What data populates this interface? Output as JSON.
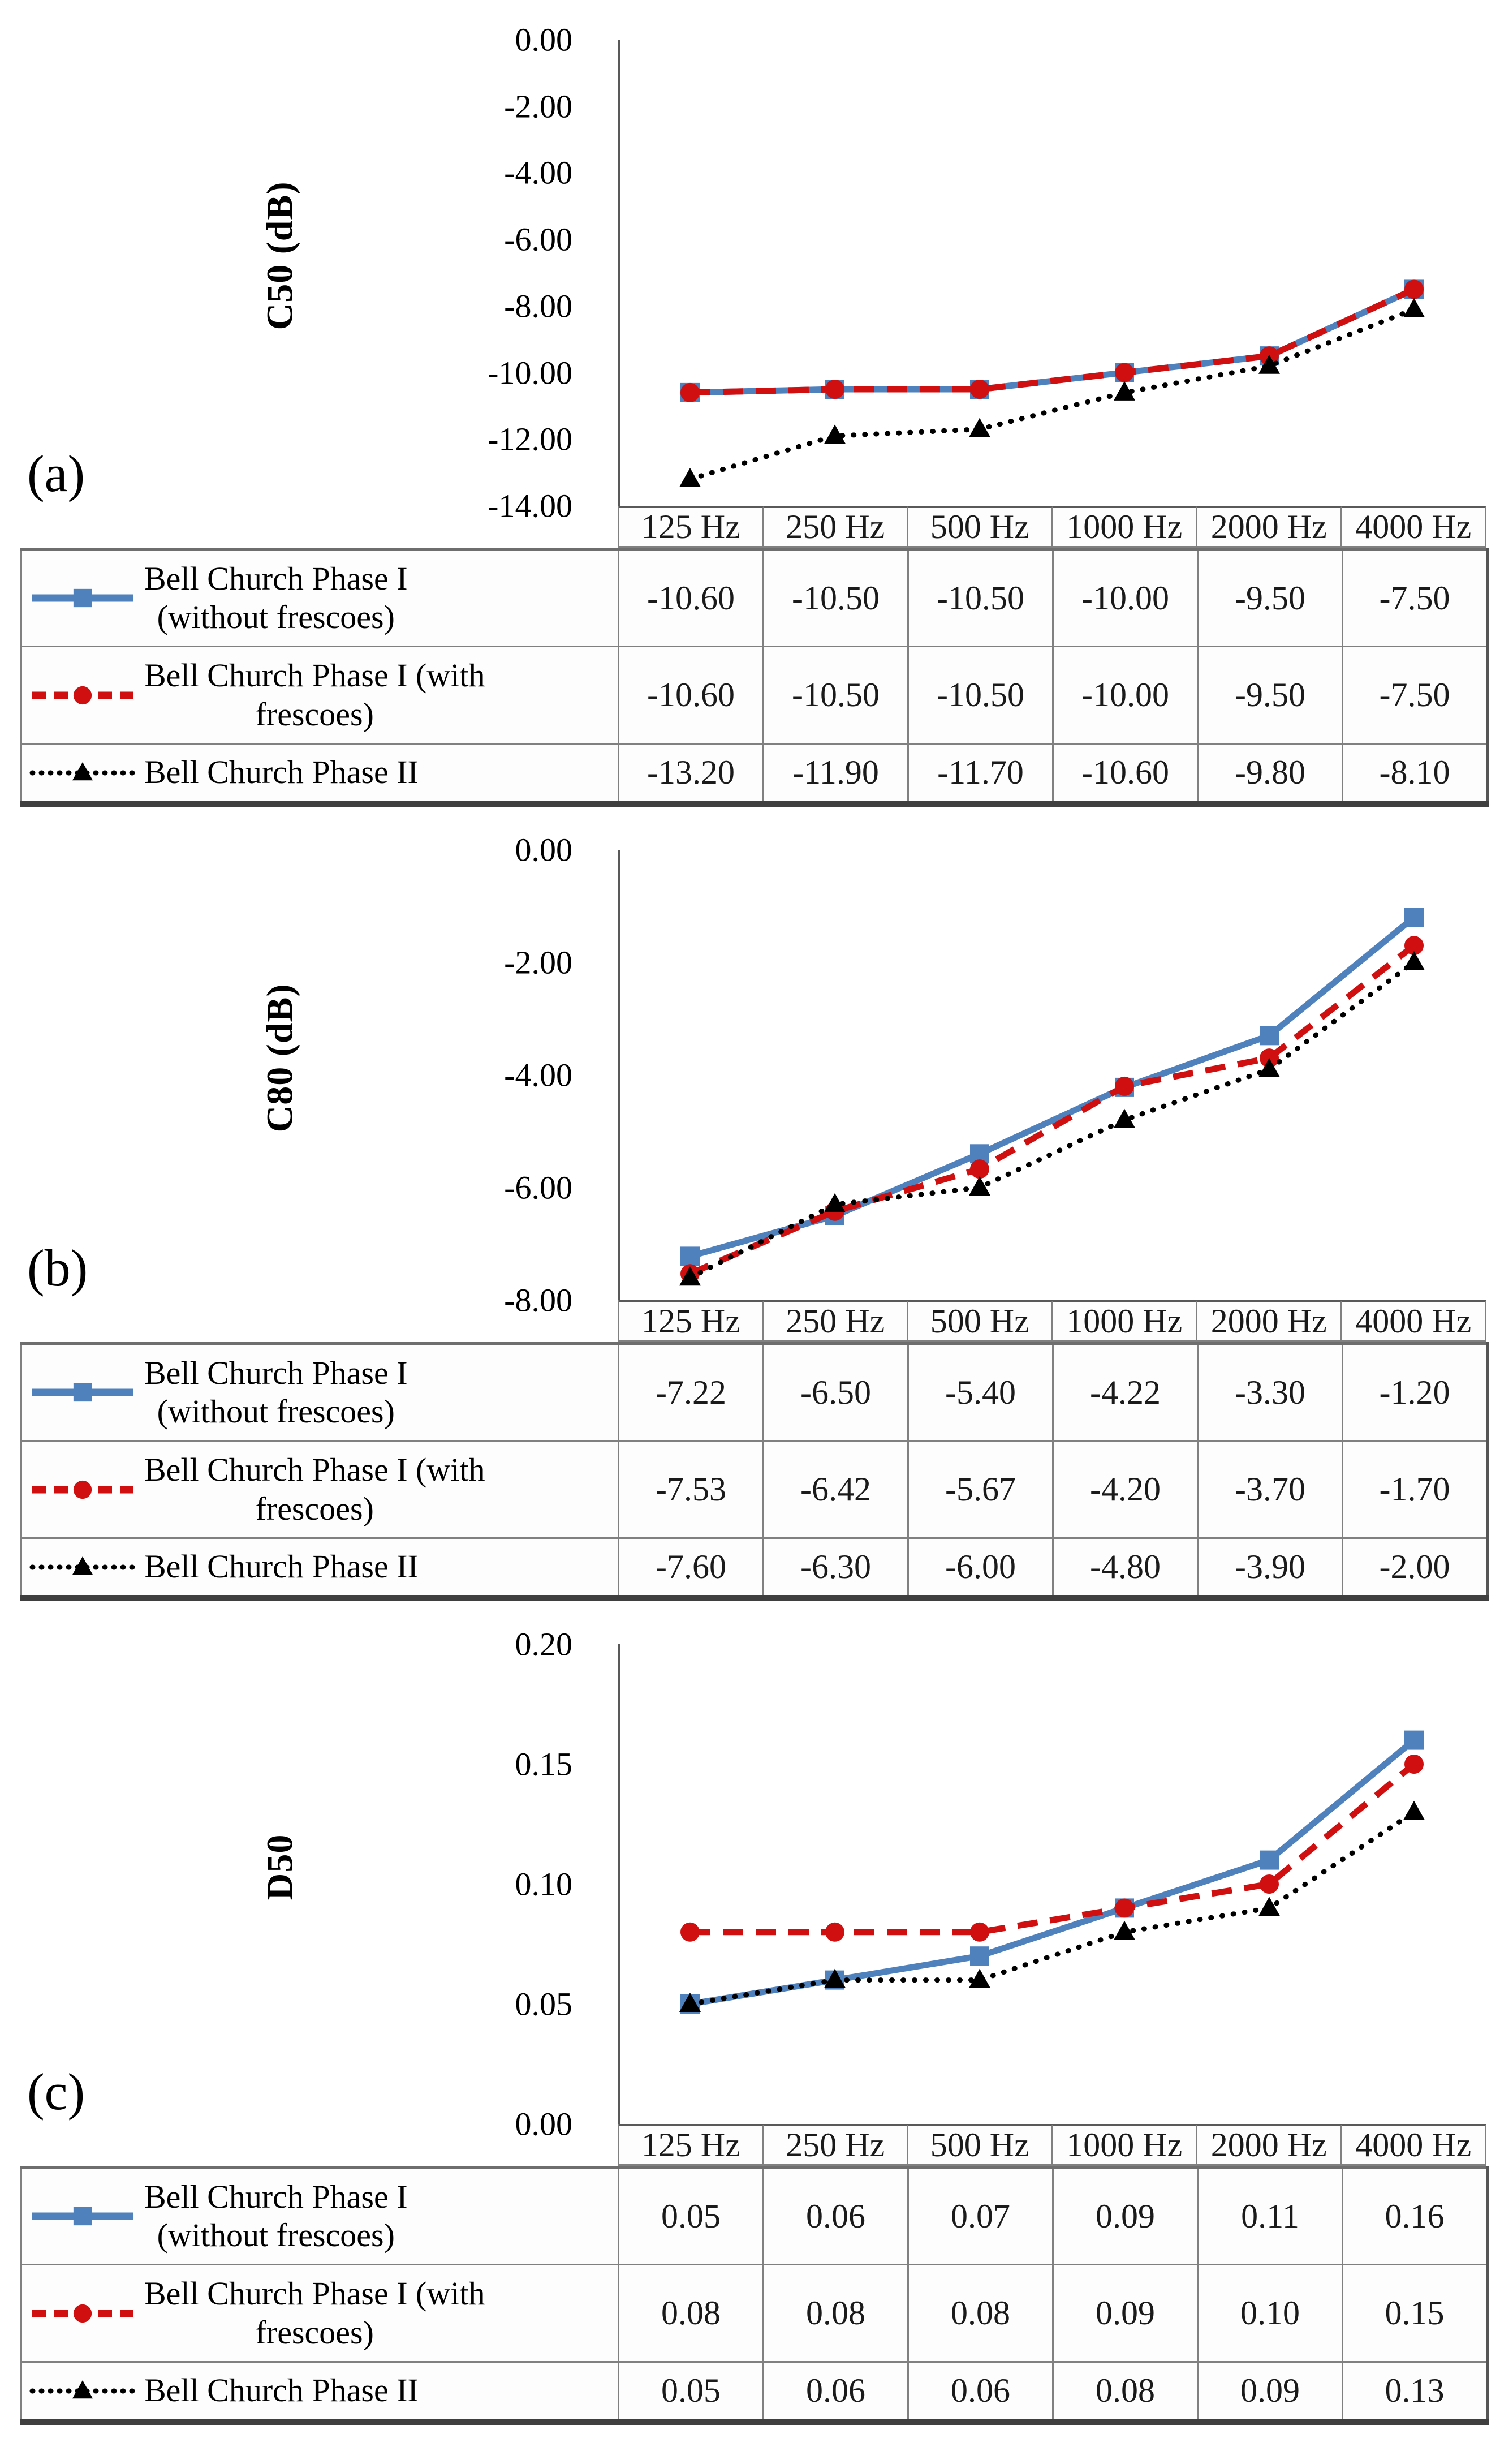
{
  "frequencies": [
    "125 Hz",
    "250 Hz",
    "500 Hz",
    "1000 Hz",
    "2000 Hz",
    "4000 Hz"
  ],
  "axis_color": "#595959",
  "series": [
    {
      "name": "Bell Church Phase I (without frescoes)",
      "legend_lines": [
        "Bell Church Phase I",
        "(without frescoes)"
      ],
      "color": "#4f81bd",
      "line_style": "solid",
      "marker": "square"
    },
    {
      "name": "Bell Church Phase I (with frescoes)",
      "legend_lines": [
        "Bell Church Phase I (with",
        "frescoes)"
      ],
      "color": "#d01010",
      "line_style": "dashed",
      "marker": "circle"
    },
    {
      "name": "Bell Church Phase II",
      "legend_lines": [
        "Bell Church Phase II"
      ],
      "color": "#000000",
      "line_style": "dotted",
      "marker": "triangle"
    }
  ],
  "chart_data": [
    {
      "type": "line",
      "panel_label": "(a)",
      "ylabel": "C50 (dB)",
      "ylim": [
        -14,
        0
      ],
      "ytick_step": 2,
      "yticks": [
        "0.00",
        "-2.00",
        "-4.00",
        "-6.00",
        "-8.00",
        "-10.00",
        "-12.00",
        "-14.00"
      ],
      "categories": [
        "125 Hz",
        "250 Hz",
        "500 Hz",
        "1000 Hz",
        "2000 Hz",
        "4000 Hz"
      ],
      "grid": false,
      "legend_position": "table-left",
      "series": [
        {
          "name": "Bell Church Phase I (without frescoes)",
          "values": [
            -10.6,
            -10.5,
            -10.5,
            -10.0,
            -9.5,
            -7.5
          ]
        },
        {
          "name": "Bell Church Phase I (with frescoes)",
          "values": [
            -10.6,
            -10.5,
            -10.5,
            -10.0,
            -9.5,
            -7.5
          ]
        },
        {
          "name": "Bell Church Phase II",
          "values": [
            -13.2,
            -11.9,
            -11.7,
            -10.6,
            -9.8,
            -8.1
          ]
        }
      ]
    },
    {
      "type": "line",
      "panel_label": "(b)",
      "ylabel": "C80 (dB)",
      "ylim": [
        -8,
        0
      ],
      "ytick_step": 2,
      "yticks": [
        "0.00",
        "-2.00",
        "-4.00",
        "-6.00",
        "-8.00"
      ],
      "categories": [
        "125 Hz",
        "250 Hz",
        "500 Hz",
        "1000 Hz",
        "2000 Hz",
        "4000 Hz"
      ],
      "grid": false,
      "legend_position": "table-left",
      "series": [
        {
          "name": "Bell Church Phase I (without frescoes)",
          "values": [
            -7.22,
            -6.5,
            -5.4,
            -4.22,
            -3.3,
            -1.2
          ]
        },
        {
          "name": "Bell Church Phase I (with frescoes)",
          "values": [
            -7.53,
            -6.42,
            -5.67,
            -4.2,
            -3.7,
            -1.7
          ]
        },
        {
          "name": "Bell Church Phase II",
          "values": [
            -7.6,
            -6.3,
            -6.0,
            -4.8,
            -3.9,
            -2.0
          ]
        }
      ]
    },
    {
      "type": "line",
      "panel_label": "(c)",
      "ylabel": "D50",
      "ylim": [
        0,
        0.2
      ],
      "ytick_step": 0.05,
      "yticks": [
        "0.20",
        "0.15",
        "0.10",
        "0.05",
        "0.00"
      ],
      "categories": [
        "125 Hz",
        "250 Hz",
        "500 Hz",
        "1000 Hz",
        "2000 Hz",
        "4000 Hz"
      ],
      "grid": false,
      "legend_position": "table-left",
      "series": [
        {
          "name": "Bell Church Phase I (without frescoes)",
          "values": [
            0.05,
            0.06,
            0.07,
            0.09,
            0.11,
            0.16
          ]
        },
        {
          "name": "Bell Church Phase I (with frescoes)",
          "values": [
            0.08,
            0.08,
            0.08,
            0.09,
            0.1,
            0.15
          ]
        },
        {
          "name": "Bell Church Phase II",
          "values": [
            0.05,
            0.06,
            0.06,
            0.08,
            0.09,
            0.13
          ]
        }
      ]
    }
  ]
}
